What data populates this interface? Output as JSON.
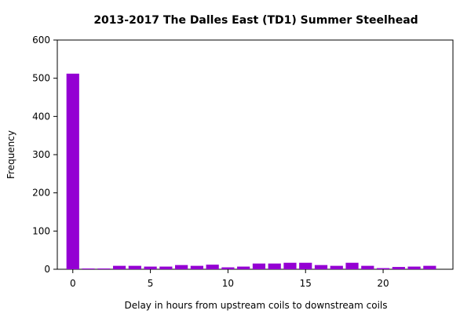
{
  "chart_data": {
    "type": "bar",
    "title": "2013-2017 The Dalles East (TD1) Summer Steelhead",
    "xlabel": "Delay in hours from upstream coils to downstream coils",
    "ylabel": "Frequency",
    "x": [
      0,
      1,
      2,
      3,
      4,
      5,
      6,
      7,
      8,
      9,
      10,
      11,
      12,
      13,
      14,
      15,
      16,
      17,
      18,
      19,
      20,
      21,
      22,
      23
    ],
    "values": [
      512,
      2,
      2,
      9,
      9,
      7,
      7,
      11,
      9,
      12,
      5,
      7,
      15,
      15,
      17,
      17,
      11,
      9,
      17,
      9,
      3,
      6,
      7,
      9
    ],
    "xlim": [
      -1,
      24.5
    ],
    "ylim": [
      0,
      600
    ],
    "xticks": [
      0,
      5,
      10,
      15,
      20
    ],
    "yticks": [
      0,
      100,
      200,
      300,
      400,
      500,
      600
    ],
    "bar_color": "#9400d3",
    "grid": false,
    "legend": "none"
  }
}
